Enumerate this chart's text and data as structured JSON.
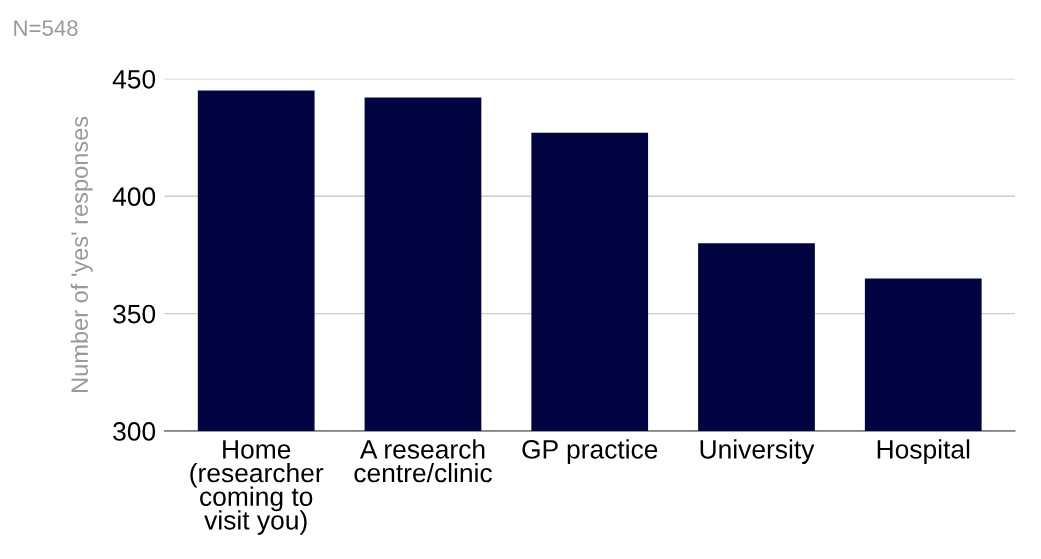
{
  "chart_data": {
    "type": "bar",
    "title": "N=548",
    "ylabel": "Number of 'yes' responses",
    "categories": [
      "Home\n(researcher\ncoming to\nvisit you)",
      "A research\ncentre/clinic",
      "GP practice",
      "University",
      "Hospital"
    ],
    "values": [
      445,
      442,
      427,
      380,
      365
    ],
    "color": "#020341",
    "ylim": [
      300,
      450
    ],
    "yticks": [
      300,
      350,
      400,
      450
    ],
    "grid": "y",
    "legend": false
  }
}
